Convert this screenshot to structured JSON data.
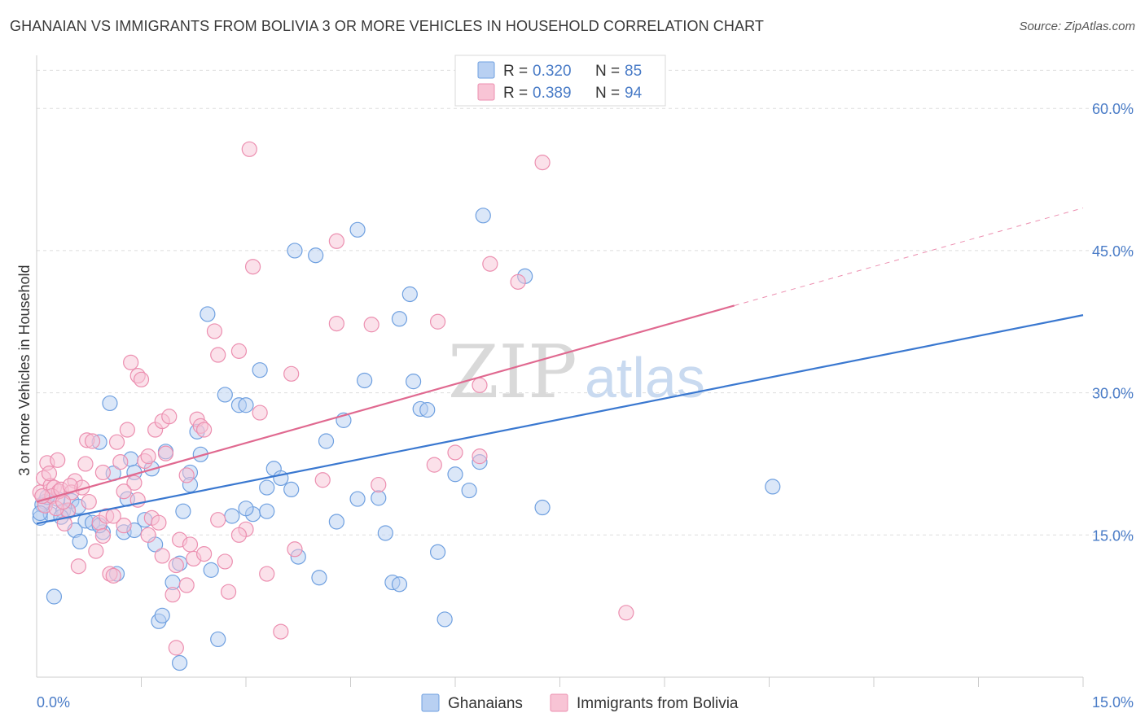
{
  "title": "GHANAIAN VS IMMIGRANTS FROM BOLIVIA 3 OR MORE VEHICLES IN HOUSEHOLD CORRELATION CHART",
  "source": "Source: ZipAtlas.com",
  "watermark": {
    "zip": "ZIP",
    "atlas": "atlas"
  },
  "legend": {
    "r_label": "R =",
    "n_label": "N =",
    "items": [
      {
        "r": "0.320",
        "n": "85",
        "color": "#6fa0e0",
        "fill": "#b8d0f2"
      },
      {
        "r": "0.389",
        "n": "94",
        "color": "#ec8fb0",
        "fill": "#f8c4d5"
      }
    ]
  },
  "bottom_legend": [
    "Ghanaians",
    "Immigrants from Bolivia"
  ],
  "chart_data": {
    "type": "scatter",
    "xlabel": "",
    "ylabel": "3 or more Vehicles in Household",
    "xlim": [
      0,
      15
    ],
    "ylim": [
      0,
      65
    ],
    "x_tick_labels": [
      "0.0%",
      "15.0%"
    ],
    "y_tick_labels": [
      "15.0%",
      "30.0%",
      "45.0%",
      "60.0%"
    ],
    "y_ticks": [
      15,
      30,
      45,
      60
    ],
    "series": [
      {
        "name": "Ghanaians",
        "color": "#3a78d0",
        "fill": "#b8d0f2",
        "stroke": "#6fa0e0",
        "trend": {
          "x0": 0,
          "y0": 16.2,
          "x1": 15,
          "y1": 38.2
        },
        "points": [
          [
            0.05,
            16.8
          ],
          [
            0.12,
            18.5
          ],
          [
            0.2,
            17.2
          ],
          [
            0.25,
            8.5
          ],
          [
            0.3,
            18.8
          ],
          [
            0.38,
            17.5
          ],
          [
            0.45,
            17.5
          ],
          [
            0.55,
            15.5
          ],
          [
            0.62,
            14.3
          ],
          [
            0.7,
            16.5
          ],
          [
            0.8,
            16.3
          ],
          [
            0.9,
            24.8
          ],
          [
            0.95,
            15.3
          ],
          [
            1.05,
            28.9
          ],
          [
            1.1,
            21.5
          ],
          [
            1.15,
            10.9
          ],
          [
            1.25,
            15.3
          ],
          [
            1.35,
            23
          ],
          [
            1.4,
            21.6
          ],
          [
            1.4,
            15.5
          ],
          [
            1.55,
            16.6
          ],
          [
            1.65,
            22
          ],
          [
            1.7,
            14
          ],
          [
            1.75,
            5.9
          ],
          [
            1.8,
            6.5
          ],
          [
            1.85,
            23.8
          ],
          [
            1.95,
            10
          ],
          [
            2.05,
            12
          ],
          [
            2.05,
            1.5
          ],
          [
            2.1,
            17.5
          ],
          [
            2.2,
            21.6
          ],
          [
            2.3,
            25.9
          ],
          [
            2.35,
            23.5
          ],
          [
            2.45,
            38.3
          ],
          [
            2.5,
            11.3
          ],
          [
            2.6,
            4
          ],
          [
            2.7,
            29.8
          ],
          [
            2.8,
            17
          ],
          [
            2.9,
            28.7
          ],
          [
            3.0,
            28.7
          ],
          [
            3.1,
            17.2
          ],
          [
            3.2,
            32.4
          ],
          [
            3.3,
            20
          ],
          [
            3.4,
            22
          ],
          [
            3.5,
            21
          ],
          [
            3.65,
            19.8
          ],
          [
            3.7,
            45
          ],
          [
            3.75,
            12.7
          ],
          [
            4.0,
            44.5
          ],
          [
            4.05,
            10.5
          ],
          [
            4.15,
            24.9
          ],
          [
            4.3,
            16.4
          ],
          [
            4.4,
            27.1
          ],
          [
            4.6,
            47.2
          ],
          [
            4.6,
            18.8
          ],
          [
            4.7,
            31.3
          ],
          [
            4.9,
            18.9
          ],
          [
            5.0,
            15.2
          ],
          [
            5.1,
            10
          ],
          [
            5.2,
            9.8
          ],
          [
            5.2,
            37.8
          ],
          [
            5.35,
            40.4
          ],
          [
            5.4,
            31.2
          ],
          [
            5.5,
            28.3
          ],
          [
            5.6,
            28.2
          ],
          [
            5.75,
            13.2
          ],
          [
            5.85,
            6.1
          ],
          [
            6.0,
            21.4
          ],
          [
            6.2,
            19.7
          ],
          [
            6.35,
            22.7
          ],
          [
            6.4,
            48.7
          ],
          [
            7.0,
            42.3
          ],
          [
            7.25,
            17.9
          ],
          [
            10.55,
            20.1
          ],
          [
            0.08,
            18.2
          ],
          [
            0.15,
            19
          ],
          [
            0.5,
            18.6
          ],
          [
            0.35,
            16.9
          ],
          [
            0.6,
            18
          ],
          [
            0.9,
            16
          ],
          [
            1.3,
            18.8
          ],
          [
            2.2,
            20.3
          ],
          [
            3.0,
            17.8
          ],
          [
            3.3,
            17.5
          ],
          [
            0.05,
            17.3
          ]
        ]
      },
      {
        "name": "Immigrants from Bolivia",
        "color": "#e06990",
        "fill": "#f8c4d5",
        "stroke": "#ec8fb0",
        "trend": {
          "x0": 0,
          "y0": 18.5,
          "x1": 10.0,
          "y1": 39.2
        },
        "trend_dashed": {
          "x0": 10.0,
          "y0": 39.2,
          "x1": 15,
          "y1": 49.5
        },
        "points": [
          [
            0.05,
            19.5
          ],
          [
            0.1,
            21
          ],
          [
            0.15,
            22.6
          ],
          [
            0.2,
            20.2
          ],
          [
            0.25,
            20
          ],
          [
            0.3,
            22.9
          ],
          [
            0.32,
            19.6
          ],
          [
            0.4,
            16.2
          ],
          [
            0.45,
            17.6
          ],
          [
            0.55,
            20.7
          ],
          [
            0.6,
            11.7
          ],
          [
            0.7,
            22.5
          ],
          [
            0.72,
            25
          ],
          [
            0.8,
            24.9
          ],
          [
            0.85,
            13.3
          ],
          [
            0.9,
            16.3
          ],
          [
            0.95,
            21.6
          ],
          [
            1.0,
            17
          ],
          [
            1.05,
            10.9
          ],
          [
            1.1,
            10.7
          ],
          [
            1.15,
            24.8
          ],
          [
            1.2,
            22.7
          ],
          [
            1.25,
            16
          ],
          [
            1.3,
            26.1
          ],
          [
            1.35,
            33.2
          ],
          [
            1.4,
            20.5
          ],
          [
            1.45,
            31.8
          ],
          [
            1.5,
            31.4
          ],
          [
            1.55,
            22.8
          ],
          [
            1.6,
            23.3
          ],
          [
            1.65,
            16.8
          ],
          [
            1.7,
            26.1
          ],
          [
            1.75,
            16.3
          ],
          [
            1.8,
            27
          ],
          [
            1.85,
            23.6
          ],
          [
            1.9,
            27.5
          ],
          [
            1.95,
            8.7
          ],
          [
            2.0,
            3.1
          ],
          [
            2.05,
            14.5
          ],
          [
            2.15,
            21.3
          ],
          [
            2.2,
            14
          ],
          [
            2.25,
            12.5
          ],
          [
            2.3,
            27.2
          ],
          [
            2.35,
            26.5
          ],
          [
            2.4,
            26.1
          ],
          [
            2.55,
            36.5
          ],
          [
            2.6,
            34
          ],
          [
            2.75,
            9
          ],
          [
            2.9,
            34.4
          ],
          [
            3.0,
            15.6
          ],
          [
            3.05,
            55.7
          ],
          [
            3.1,
            43.3
          ],
          [
            3.2,
            27.9
          ],
          [
            3.3,
            10.9
          ],
          [
            3.5,
            4.8
          ],
          [
            3.65,
            32
          ],
          [
            3.7,
            13.5
          ],
          [
            4.1,
            20.8
          ],
          [
            4.3,
            46
          ],
          [
            4.3,
            37.3
          ],
          [
            4.8,
            37.2
          ],
          [
            4.9,
            20.3
          ],
          [
            5.7,
            22.4
          ],
          [
            5.75,
            37.5
          ],
          [
            6.0,
            23.7
          ],
          [
            6.35,
            23.3
          ],
          [
            6.35,
            30.8
          ],
          [
            6.5,
            43.6
          ],
          [
            6.9,
            41.7
          ],
          [
            7.25,
            54.3
          ],
          [
            8.45,
            6.8
          ],
          [
            0.12,
            18.1
          ],
          [
            0.22,
            19.1
          ],
          [
            0.35,
            19.8
          ],
          [
            0.5,
            19.5
          ],
          [
            0.65,
            20
          ],
          [
            0.75,
            18.5
          ],
          [
            0.95,
            14.9
          ],
          [
            1.1,
            17
          ],
          [
            1.25,
            19.6
          ],
          [
            1.45,
            18.7
          ],
          [
            1.6,
            15
          ],
          [
            1.8,
            12.8
          ],
          [
            2.0,
            11.8
          ],
          [
            2.15,
            9.7
          ],
          [
            2.4,
            13
          ],
          [
            2.6,
            16.6
          ],
          [
            2.7,
            12.2
          ],
          [
            2.9,
            15
          ],
          [
            0.08,
            19.1
          ],
          [
            0.18,
            21.5
          ],
          [
            0.28,
            17.8
          ],
          [
            0.38,
            18.5
          ],
          [
            0.48,
            20.2
          ]
        ]
      }
    ]
  }
}
